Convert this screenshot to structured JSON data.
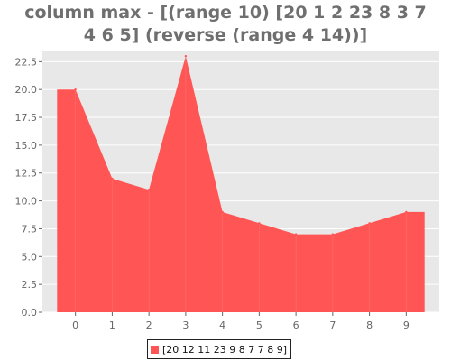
{
  "title_lines": [
    "column max - [(range 10) [20 1 2 23 8 3 7",
    "4 6 5] (reverse (range 4 14))]"
  ],
  "colors": {
    "plot_bg": "#e8e8e8",
    "grid": "#ffffff",
    "series": "#ff5555",
    "series_edge": "#ff8a8a"
  },
  "chart_data": {
    "type": "area",
    "title": "column max - [(range 10) [20 1 2 23 8 3 7 4 6 5] (reverse (range 4 14))]",
    "x": [
      0,
      1,
      2,
      3,
      4,
      5,
      6,
      7,
      8,
      9
    ],
    "series": [
      {
        "name": "[20 12 11 23 9 8 7 7 8 9]",
        "values": [
          20,
          12,
          11,
          23,
          9,
          8,
          7,
          7,
          8,
          9
        ]
      }
    ],
    "xlabel": "",
    "ylabel": "",
    "ylim": [
      0,
      23.5
    ],
    "yticks": [
      "0.0",
      "2.5",
      "5.0",
      "7.5",
      "10.0",
      "12.5",
      "15.0",
      "17.5",
      "20.0",
      "22.5"
    ],
    "xticks": [
      "0",
      "1",
      "2",
      "3",
      "4",
      "5",
      "6",
      "7",
      "8",
      "9"
    ],
    "grid": true,
    "legend_position": "bottom-center"
  },
  "legend": {
    "label": "[20 12 11 23 9 8 7 7 8 9]"
  }
}
